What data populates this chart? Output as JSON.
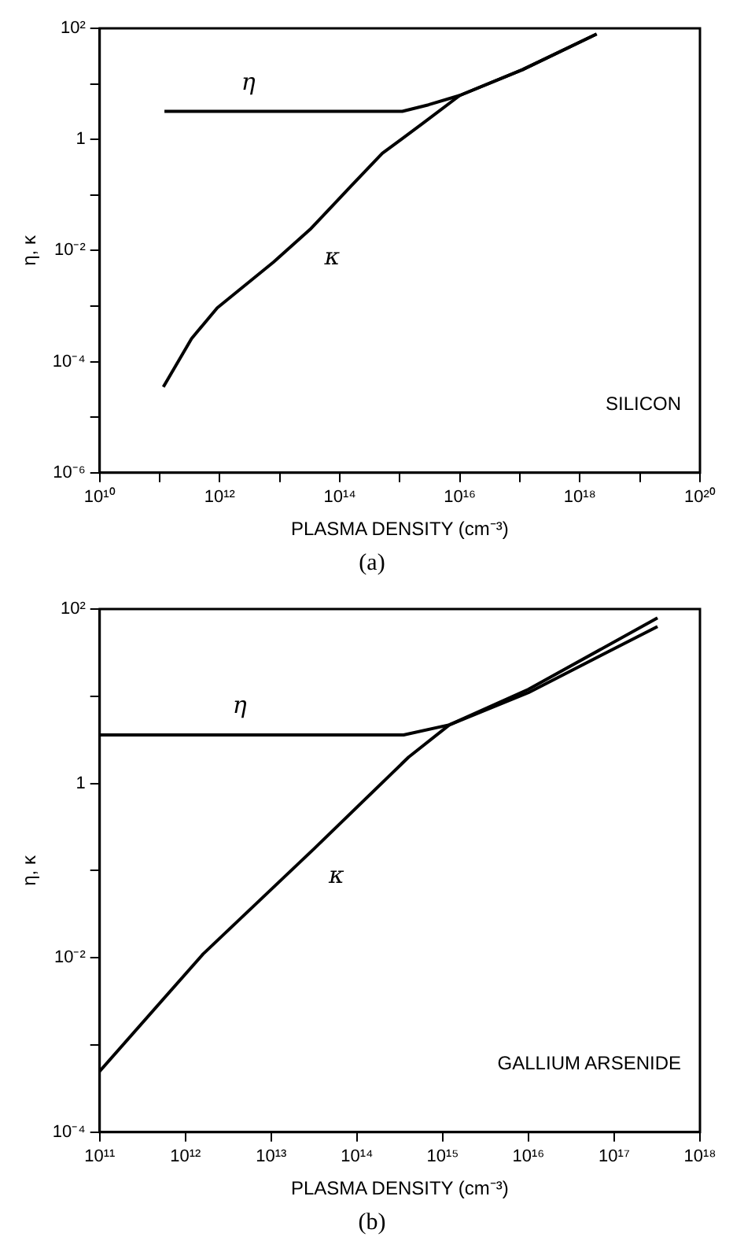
{
  "chart_data": [
    {
      "type": "line",
      "xlabel": "PLASMA DENSITY (cm⁻³)",
      "ylabel": "η, κ",
      "log": "xy",
      "xlim": [
        10000000000.0,
        1e+20
      ],
      "ylim": [
        1e-06,
        100
      ],
      "xticks": [
        {
          "value": 10000000000.0,
          "label": "10¹⁰"
        },
        {
          "value": 100000000000.0,
          "label": null
        },
        {
          "value": 1000000000000.0,
          "label": "10¹²"
        },
        {
          "value": 10000000000000.0,
          "label": null
        },
        {
          "value": 100000000000000.0,
          "label": "10¹⁴"
        },
        {
          "value": 1000000000000000.0,
          "label": null
        },
        {
          "value": 1e+16,
          "label": "10¹⁶"
        },
        {
          "value": 1e+17,
          "label": null
        },
        {
          "value": 1e+18,
          "label": "10¹⁸"
        },
        {
          "value": 1e+19,
          "label": null
        },
        {
          "value": 1e+20,
          "label": "10²⁰"
        }
      ],
      "yticks": [
        {
          "value": 1e-06,
          "label": "10⁻⁶"
        },
        {
          "value": 1e-05,
          "label": null
        },
        {
          "value": 0.0001,
          "label": "10⁻⁴"
        },
        {
          "value": 0.001,
          "label": null
        },
        {
          "value": 0.01,
          "label": "10⁻²"
        },
        {
          "value": 0.1,
          "label": null
        },
        1,
        {
          "value": 10,
          "label": null
        },
        {
          "value": 100,
          "label": "10²"
        }
      ],
      "series": [
        {
          "name": "η",
          "color": "#000000",
          "x": [
            120000000000.0,
            10000000000000.0,
            1100000000000000.0,
            3000000000000000.0,
            1e+16,
            1.1e+17,
            1.9e+18
          ],
          "values": [
            3.2,
            3.2,
            3.2,
            4.2,
            6.2,
            18,
            79
          ]
        },
        {
          "name": "κ",
          "color": "#000000",
          "x": [
            115000000000.0,
            340000000000.0,
            910000000000.0,
            7900000000000.0,
            32000000000000.0,
            150000000000000.0,
            510000000000000.0,
            2500000000000000.0,
            1e+16,
            1.1e+17,
            1.9e+18
          ],
          "values": [
            3.5e-05,
            0.00026,
            0.00093,
            0.0062,
            0.024,
            0.14,
            0.56,
            2.0,
            6.2,
            18,
            79
          ]
        }
      ],
      "annotations": [
        "SILICON",
        "(a)"
      ]
    },
    {
      "type": "line",
      "xlabel": "PLASMA DENSITY (cm⁻³)",
      "ylabel": "η, κ",
      "log": "xy",
      "xlim": [
        100000000000.0,
        1e+18
      ],
      "ylim": [
        0.0001,
        100
      ],
      "xticks": [
        {
          "value": 100000000000.0,
          "label": "10¹¹"
        },
        {
          "value": 1000000000000.0,
          "label": "10¹²"
        },
        {
          "value": 10000000000000.0,
          "label": "10¹³"
        },
        {
          "value": 100000000000000.0,
          "label": "10¹⁴"
        },
        {
          "value": 1000000000000000.0,
          "label": "10¹⁵"
        },
        {
          "value": 1e+16,
          "label": "10¹⁶"
        },
        {
          "value": 1e+17,
          "label": "10¹⁷"
        },
        {
          "value": 1e+18,
          "label": "10¹⁸"
        }
      ],
      "yticks": [
        {
          "value": 0.0001,
          "label": "10⁻⁴"
        },
        {
          "value": 0.001,
          "label": null
        },
        {
          "value": 0.01,
          "label": "10⁻²"
        },
        {
          "value": 0.1,
          "label": null
        },
        1,
        {
          "value": 10,
          "label": null
        },
        {
          "value": 100,
          "label": "10²"
        }
      ],
      "series": [
        {
          "name": "η",
          "color": "#000000",
          "x": [
            100000000000.0,
            10000000000000.0,
            350000000000000.0,
            1200000000000000.0,
            1e+16,
            3.2e+17
          ],
          "values": [
            3.6,
            3.6,
            3.6,
            4.7,
            12,
            79
          ]
        },
        {
          "name": "κ",
          "color": "#000000",
          "x": [
            100000000000.0,
            1600000000000.0,
            32000000000000.0,
            400000000000000.0,
            1200000000000000.0,
            1e+16,
            3.2e+17
          ],
          "values": [
            0.0005,
            0.011,
            0.18,
            2.0,
            4.7,
            11,
            63
          ]
        }
      ],
      "annotations": [
        "GALLIUM ARSENIDE",
        "(b)"
      ]
    }
  ]
}
